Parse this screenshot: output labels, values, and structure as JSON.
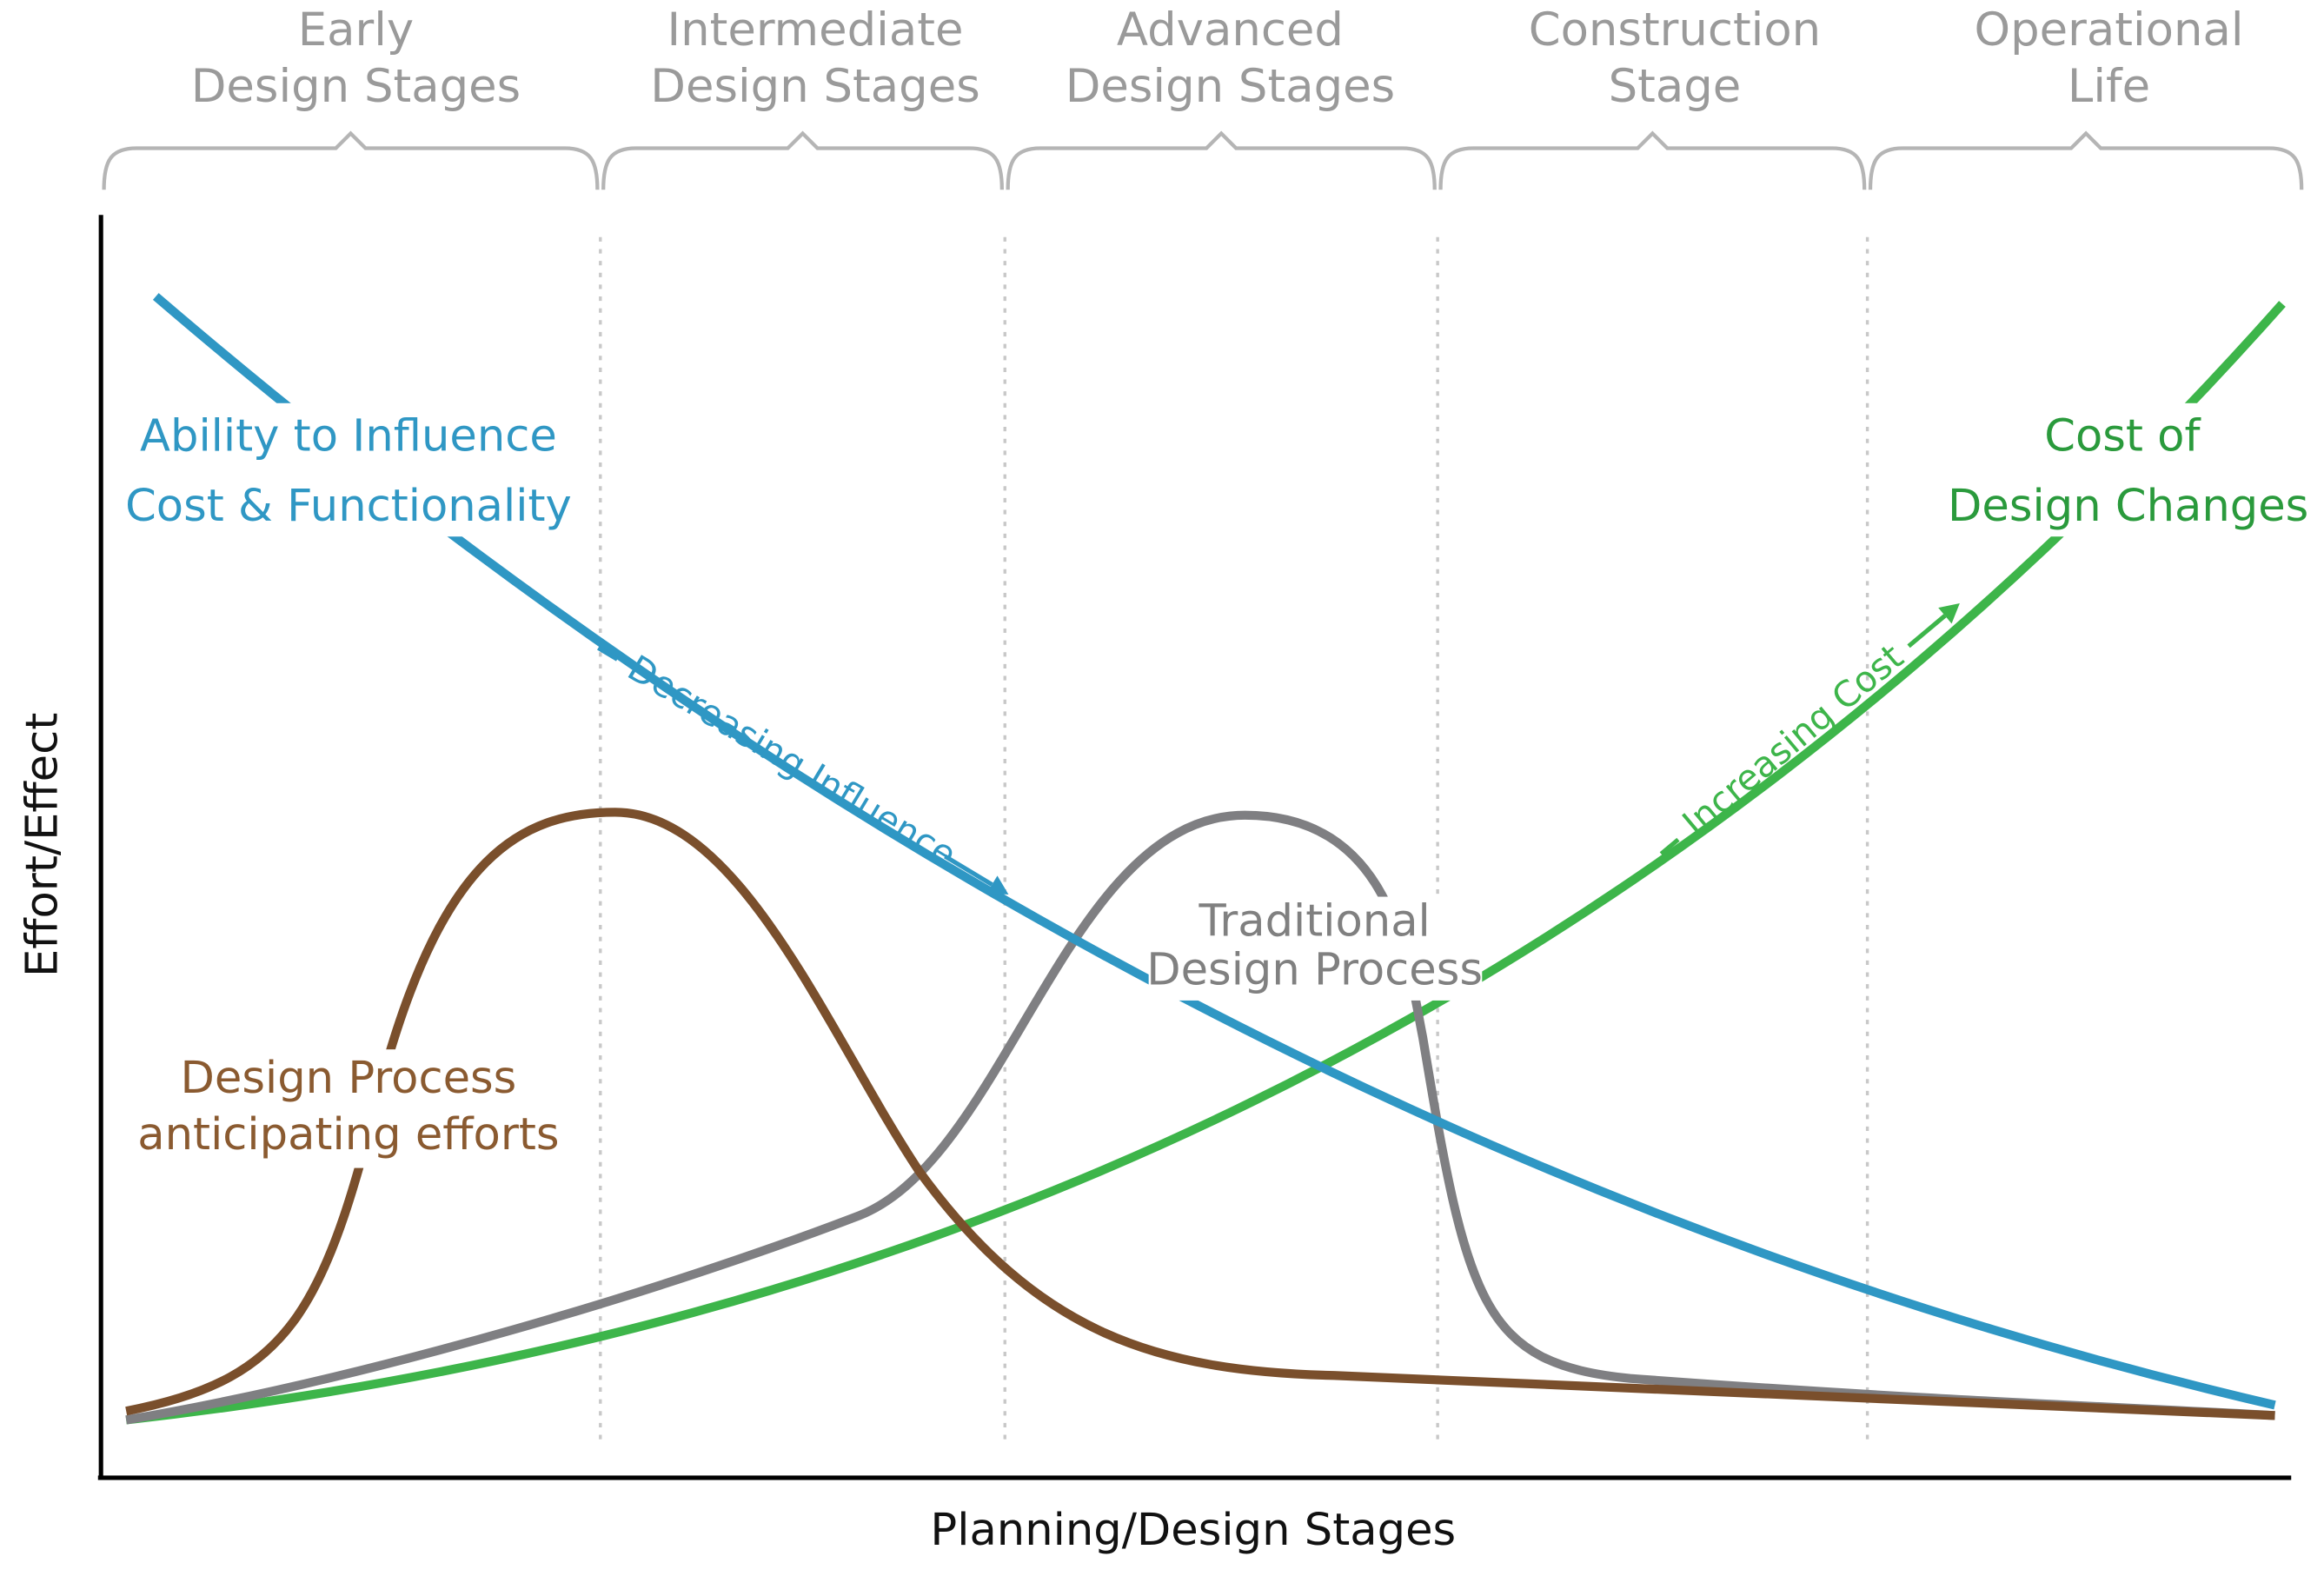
{
  "stages": [
    {
      "lines": [
        "Early",
        "Design Stages"
      ]
    },
    {
      "lines": [
        "Intermediate",
        "Design Stages"
      ]
    },
    {
      "lines": [
        "Advanced",
        "Design Stages"
      ]
    },
    {
      "lines": [
        "Construction",
        "Stage"
      ]
    },
    {
      "lines": [
        "Operational",
        "Life"
      ]
    }
  ],
  "axes": {
    "y_label": "Effort/Effect",
    "x_label": "Planning/Design Stages"
  },
  "curves": {
    "influence": {
      "lines": [
        "Ability to Influence",
        "Cost & Functionality"
      ],
      "annotation": "Decreasing Influence"
    },
    "cost": {
      "lines": [
        "Cost of",
        "Design Changes"
      ],
      "annotation": "Increasing Cost"
    },
    "traditional": {
      "lines": [
        "Traditional",
        "Design Process"
      ]
    },
    "anticipating": {
      "lines": [
        "Design Process",
        "anticipating efforts"
      ]
    }
  }
}
